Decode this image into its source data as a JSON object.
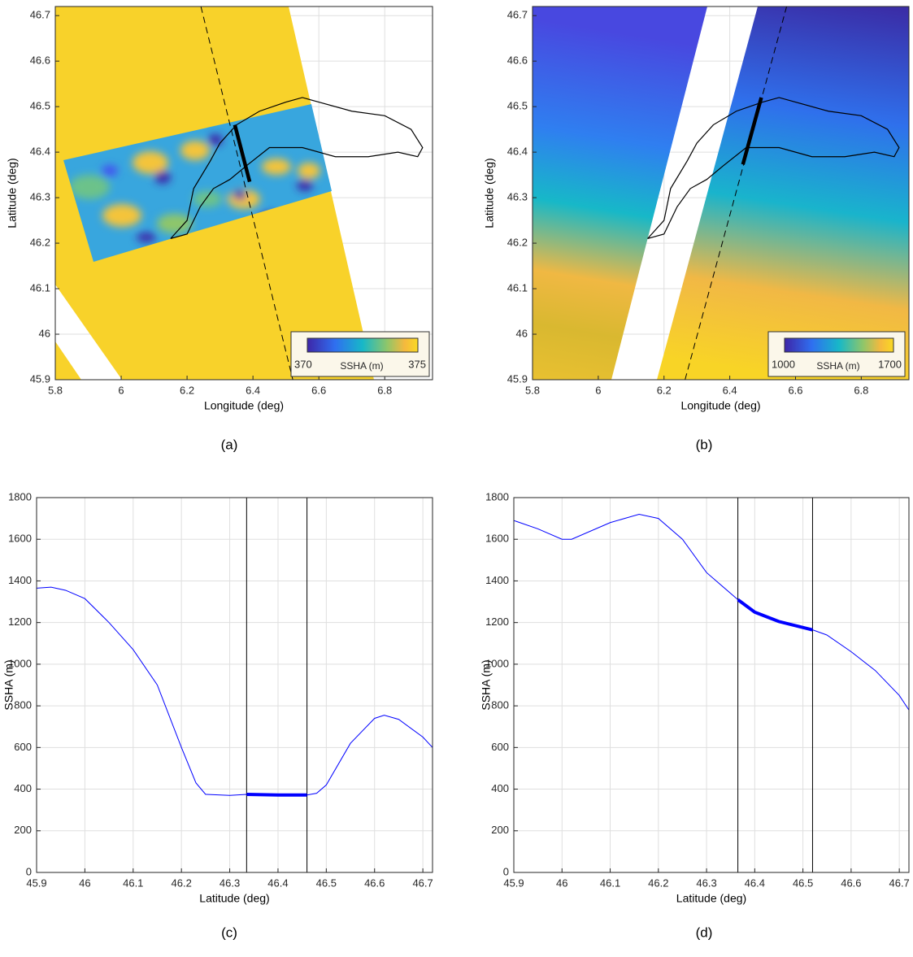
{
  "chart_data": [
    {
      "type": "map",
      "caption": "(a)",
      "xlabel": "Longitude (deg)",
      "ylabel": "Latitude (deg)",
      "xlim": [
        5.8,
        6.945
      ],
      "ylim": [
        45.9,
        46.72
      ],
      "xticks": [
        5.8,
        6,
        6.2,
        6.4,
        6.6,
        6.8
      ],
      "yticks": [
        45.9,
        46,
        46.1,
        46.2,
        46.3,
        46.4,
        46.5,
        46.6,
        46.7
      ],
      "grid": true,
      "outline": {
        "x": [
          6.15,
          6.2,
          6.22,
          6.27,
          6.3,
          6.35,
          6.42,
          6.5,
          6.55,
          6.6,
          6.7,
          6.8,
          6.88,
          6.915,
          6.9,
          6.84,
          6.75,
          6.65,
          6.55,
          6.45,
          6.38,
          6.33,
          6.28,
          6.24,
          6.2,
          6.15
        ],
        "y": [
          46.21,
          46.25,
          46.32,
          46.38,
          46.42,
          46.46,
          46.49,
          46.51,
          46.52,
          46.51,
          46.49,
          46.48,
          46.45,
          46.41,
          46.39,
          46.4,
          46.39,
          46.39,
          46.41,
          46.41,
          46.37,
          46.34,
          46.32,
          46.28,
          46.22,
          46.21
        ]
      },
      "track": {
        "x": [
          6.242,
          6.521
        ],
        "y": [
          46.72,
          45.9
        ]
      },
      "segment": {
        "x": [
          6.345,
          6.39
        ],
        "y": [
          46.46,
          46.335
        ]
      },
      "colorbar": {
        "label": "SSHA (m)",
        "ticks": [
          370,
          375
        ]
      }
    },
    {
      "type": "map",
      "caption": "(b)",
      "xlabel": "Longitude (deg)",
      "ylabel": "Latitude (deg)",
      "xlim": [
        5.8,
        6.945
      ],
      "ylim": [
        45.9,
        46.72
      ],
      "xticks": [
        5.8,
        6,
        6.2,
        6.4,
        6.6,
        6.8
      ],
      "yticks": [
        45.9,
        46,
        46.1,
        46.2,
        46.3,
        46.4,
        46.5,
        46.6,
        46.7
      ],
      "grid": true,
      "outline": {
        "x": [
          6.15,
          6.2,
          6.22,
          6.27,
          6.3,
          6.35,
          6.42,
          6.5,
          6.55,
          6.6,
          6.7,
          6.8,
          6.88,
          6.915,
          6.9,
          6.84,
          6.75,
          6.65,
          6.55,
          6.45,
          6.38,
          6.33,
          6.28,
          6.24,
          6.2,
          6.15
        ],
        "y": [
          46.21,
          46.25,
          46.32,
          46.38,
          46.42,
          46.46,
          46.49,
          46.51,
          46.52,
          46.51,
          46.49,
          46.48,
          46.45,
          46.41,
          46.39,
          46.4,
          46.39,
          46.39,
          46.41,
          46.41,
          46.37,
          46.34,
          46.32,
          46.28,
          46.22,
          46.21
        ]
      },
      "track": {
        "x": [
          6.264,
          6.573
        ],
        "y": [
          45.9,
          46.72
        ]
      },
      "segment": {
        "x": [
          6.44,
          6.496
        ],
        "y": [
          46.373,
          46.52
        ]
      },
      "colorbar": {
        "label": "SSHA (m)",
        "ticks": [
          1000,
          1700
        ]
      }
    },
    {
      "type": "line",
      "caption": "(c)",
      "xlabel": "Latitude (deg)",
      "ylabel": "SSHA (m)",
      "xlim": [
        45.9,
        46.72
      ],
      "ylim": [
        0,
        1800
      ],
      "xticks": [
        45.9,
        46,
        46.1,
        46.2,
        46.3,
        46.4,
        46.5,
        46.6,
        46.7
      ],
      "yticks": [
        0,
        200,
        400,
        600,
        800,
        1000,
        1200,
        1400,
        1600,
        1800
      ],
      "grid": true,
      "x": [
        45.9,
        45.93,
        45.96,
        46.0,
        46.05,
        46.1,
        46.15,
        46.2,
        46.23,
        46.25,
        46.3,
        46.335,
        46.46,
        46.48,
        46.5,
        46.55,
        46.6,
        46.62,
        46.65,
        46.7,
        46.72
      ],
      "series": [
        {
          "color": "#0000ff",
          "values": [
            1365,
            1370,
            1355,
            1315,
            1200,
            1070,
            900,
            600,
            430,
            375,
            370,
            375,
            372,
            380,
            420,
            620,
            740,
            755,
            735,
            650,
            600
          ]
        }
      ],
      "highlight": {
        "x": [
          46.335,
          46.4,
          46.46
        ],
        "values": [
          375,
          372,
          372
        ]
      },
      "vlines": [
        46.335,
        46.46
      ]
    },
    {
      "type": "line",
      "caption": "(d)",
      "xlabel": "Latitude (deg)",
      "ylabel": "SSHA (m)",
      "xlim": [
        45.9,
        46.72
      ],
      "ylim": [
        0,
        1800
      ],
      "xticks": [
        45.9,
        46,
        46.1,
        46.2,
        46.3,
        46.4,
        46.5,
        46.6,
        46.7
      ],
      "yticks": [
        0,
        200,
        400,
        600,
        800,
        1000,
        1200,
        1400,
        1600,
        1800
      ],
      "grid": true,
      "x": [
        45.9,
        45.95,
        46.0,
        46.02,
        46.1,
        46.16,
        46.2,
        46.25,
        46.3,
        46.365,
        46.4,
        46.45,
        46.52,
        46.55,
        46.6,
        46.65,
        46.7,
        46.72
      ],
      "series": [
        {
          "color": "#0000ff",
          "values": [
            1690,
            1650,
            1600,
            1600,
            1680,
            1720,
            1700,
            1600,
            1440,
            1310,
            1250,
            1205,
            1165,
            1140,
            1060,
            970,
            850,
            780
          ]
        }
      ],
      "highlight": {
        "x": [
          46.365,
          46.4,
          46.45,
          46.52
        ],
        "values": [
          1310,
          1250,
          1205,
          1165
        ]
      },
      "vlines": [
        46.365,
        46.52
      ]
    }
  ]
}
